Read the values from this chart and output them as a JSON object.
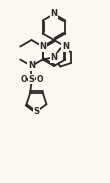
{
  "bg_color": "#faf8f0",
  "line_color": "#282828",
  "lw": 1.3,
  "fs": 6.0,
  "xlim": [
    0,
    110
  ],
  "ylim": [
    0,
    183
  ]
}
